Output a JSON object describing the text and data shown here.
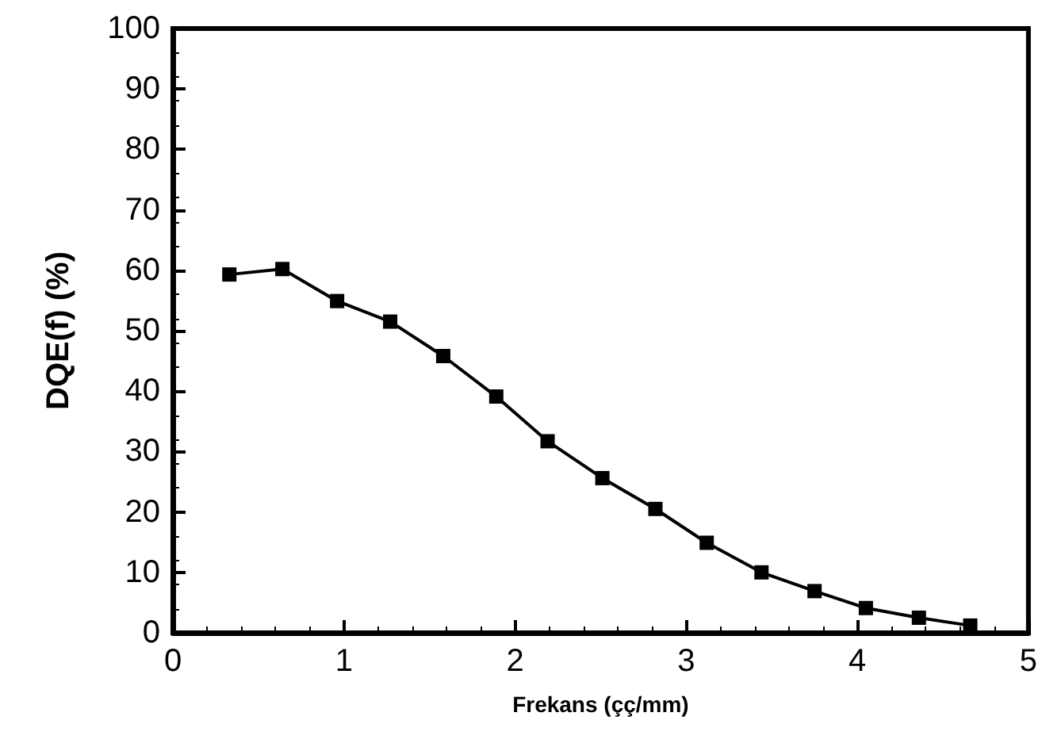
{
  "chart_data": {
    "type": "line",
    "xlabel": "Frekans (çç/mm)",
    "ylabel": "DQE(f) (%)",
    "series": [
      {
        "color": "#000000",
        "x": [
          0.33,
          0.64,
          0.96,
          1.27,
          1.58,
          1.89,
          2.19,
          2.51,
          2.82,
          3.12,
          3.44,
          3.75,
          4.05,
          4.36,
          4.66
        ],
        "values": [
          59.3,
          60.2,
          54.9,
          51.5,
          45.8,
          39.1,
          31.7,
          25.6,
          20.5,
          14.9,
          10.0,
          6.9,
          4.1,
          2.5,
          1.2
        ]
      }
    ],
    "xlim": [
      0,
      5
    ],
    "xticks": [
      0,
      1,
      2,
      3,
      4,
      5
    ],
    "ylim": [
      0,
      100
    ],
    "yticks": [
      0,
      10,
      20,
      30,
      40,
      50,
      60,
      70,
      80,
      90,
      100
    ],
    "grid": false,
    "marker": "square",
    "line_style": "solid"
  }
}
